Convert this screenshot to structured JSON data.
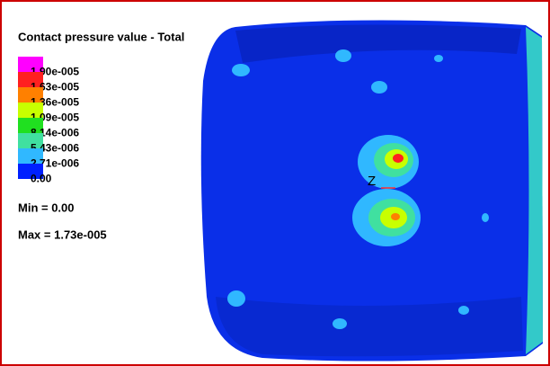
{
  "title": "Contact pressure value - Total",
  "legend": [
    {
      "label": "1.90e-005",
      "color": "#ff00ff"
    },
    {
      "label": "1.63e-005",
      "color": "#ff2020"
    },
    {
      "label": "1.36e-005",
      "color": "#ff8000"
    },
    {
      "label": "1.09e-005",
      "color": "#c8ff00"
    },
    {
      "label": "8.14e-006",
      "color": "#20e020"
    },
    {
      "label": "5.43e-006",
      "color": "#40e0a0"
    },
    {
      "label": "2.71e-006",
      "color": "#30b8ff"
    },
    {
      "label": "0.00",
      "color": "#0020ff"
    }
  ],
  "min": "Min = 0.00",
  "max": "Max = 1.73e-005",
  "axis_label": "Z"
}
